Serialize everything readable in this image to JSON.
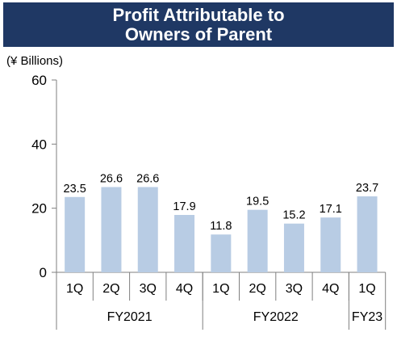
{
  "chart_data": {
    "type": "bar",
    "title_lines": [
      "Profit Attributable to",
      "Owners of Parent"
    ],
    "unit_label": "(¥ Billions)",
    "ylim": [
      0,
      60
    ],
    "y_ticks": [
      0,
      20,
      40,
      60
    ],
    "grid": false,
    "bar_color": "#b8cce4",
    "categories": [
      "1Q",
      "2Q",
      "3Q",
      "4Q",
      "1Q",
      "2Q",
      "3Q",
      "4Q",
      "1Q"
    ],
    "values": [
      23.5,
      26.6,
      26.6,
      17.9,
      11.8,
      19.5,
      15.2,
      17.1,
      23.7
    ],
    "value_labels": [
      "23.5",
      "26.6",
      "26.6",
      "17.9",
      "11.8",
      "19.5",
      "15.2",
      "17.1",
      "23.7"
    ],
    "groups": [
      {
        "label": "FY2021",
        "start": 0,
        "count": 4
      },
      {
        "label": "FY2022",
        "start": 4,
        "count": 4
      },
      {
        "label": "FY23",
        "start": 8,
        "count": 1
      }
    ]
  }
}
